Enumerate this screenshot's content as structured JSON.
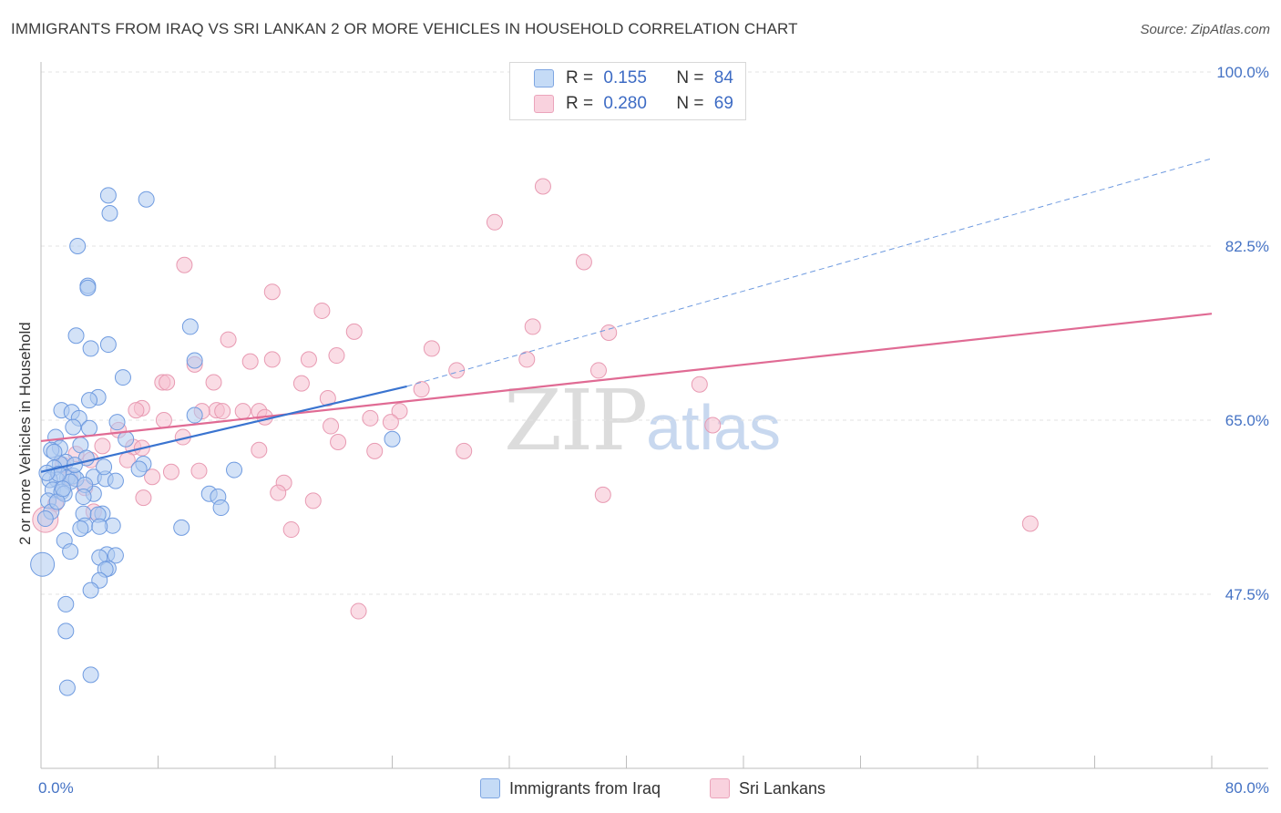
{
  "header": {
    "title": "IMMIGRANTS FROM IRAQ VS SRI LANKAN 2 OR MORE VEHICLES IN HOUSEHOLD CORRELATION CHART",
    "source": "Source: ZipAtlas.com"
  },
  "legend": {
    "series1": {
      "r_label": "R =",
      "r_value": "0.155",
      "n_label": "N =",
      "n_value": "84"
    },
    "series2": {
      "r_label": "R =",
      "r_value": "0.280",
      "n_label": "N =",
      "n_value": "69"
    }
  },
  "watermark": {
    "zip": "ZIP",
    "atlas": "atlas"
  },
  "colors": {
    "blue_fill": "#aecbf0",
    "blue_stroke": "#6f9be0",
    "blue_line": "#3a74d0",
    "pink_fill": "#f6c0d0",
    "pink_stroke": "#e89ab2",
    "pink_line": "#e06b94",
    "axis_text": "#4472c4"
  },
  "chart_data": {
    "type": "scatter",
    "title": "IMMIGRANTS FROM IRAQ VS SRI LANKAN 2 OR MORE VEHICLES IN HOUSEHOLD CORRELATION CHART",
    "xlabel": "",
    "ylabel": "2 or more Vehicles in Household",
    "x_range": [
      0,
      80
    ],
    "y_range": [
      30,
      100
    ],
    "x_tick_labels": [
      "0.0%",
      "80.0%"
    ],
    "y_ticks": [
      47.5,
      65.0,
      82.5,
      100.0
    ],
    "y_tick_labels": [
      "47.5%",
      "65.0%",
      "82.5%",
      "100.0%"
    ],
    "grid": true,
    "series": [
      {
        "name": "Immigrants from Iraq",
        "r": 0.155,
        "n": 84,
        "trend": {
          "x": [
            0.0,
            25.0
          ],
          "y": [
            59.8,
            68.4
          ]
        },
        "trend_ext": {
          "x": [
            25.0,
            80.0
          ],
          "y": [
            68.4,
            91.3
          ]
        },
        "points": [
          [
            4.6,
            87.6
          ],
          [
            7.2,
            87.2
          ],
          [
            4.7,
            85.8
          ],
          [
            2.5,
            82.5
          ],
          [
            3.2,
            78.5
          ],
          [
            3.2,
            78.3
          ],
          [
            10.2,
            74.4
          ],
          [
            2.4,
            73.5
          ],
          [
            4.6,
            72.6
          ],
          [
            3.4,
            72.2
          ],
          [
            10.5,
            71.0
          ],
          [
            5.6,
            69.3
          ],
          [
            3.9,
            67.3
          ],
          [
            3.3,
            67.0
          ],
          [
            1.4,
            66.0
          ],
          [
            2.1,
            65.8
          ],
          [
            2.6,
            65.2
          ],
          [
            10.5,
            65.5
          ],
          [
            5.2,
            64.8
          ],
          [
            2.2,
            64.3
          ],
          [
            3.3,
            64.2
          ],
          [
            1.0,
            63.3
          ],
          [
            5.8,
            63.1
          ],
          [
            2.7,
            62.5
          ],
          [
            1.3,
            62.2
          ],
          [
            0.7,
            62.0
          ],
          [
            3.1,
            61.2
          ],
          [
            1.7,
            60.8
          ],
          [
            1.3,
            60.6
          ],
          [
            7.0,
            60.6
          ],
          [
            0.9,
            60.2
          ],
          [
            6.7,
            60.1
          ],
          [
            13.2,
            60.0
          ],
          [
            2.2,
            59.4
          ],
          [
            3.6,
            59.3
          ],
          [
            1.8,
            59.2
          ],
          [
            4.4,
            59.1
          ],
          [
            1.1,
            59.0
          ],
          [
            0.6,
            59.0
          ],
          [
            2.4,
            59.1
          ],
          [
            5.1,
            58.9
          ],
          [
            2.0,
            58.8
          ],
          [
            0.8,
            58.0
          ],
          [
            1.4,
            57.8
          ],
          [
            1.6,
            57.6
          ],
          [
            3.6,
            57.6
          ],
          [
            11.5,
            57.6
          ],
          [
            12.1,
            57.3
          ],
          [
            0.5,
            56.9
          ],
          [
            12.3,
            56.2
          ],
          [
            0.7,
            55.8
          ],
          [
            2.9,
            55.6
          ],
          [
            4.2,
            55.6
          ],
          [
            3.9,
            55.5
          ],
          [
            0.3,
            55.1
          ],
          [
            3.0,
            54.4
          ],
          [
            4.9,
            54.4
          ],
          [
            4.0,
            54.3
          ],
          [
            9.6,
            54.2
          ],
          [
            2.7,
            54.1
          ],
          [
            1.6,
            52.9
          ],
          [
            2.0,
            51.8
          ],
          [
            4.5,
            51.5
          ],
          [
            5.1,
            51.4
          ],
          [
            4.0,
            51.2
          ],
          [
            4.6,
            50.1
          ],
          [
            4.4,
            50.0
          ],
          [
            0.1,
            50.5
          ],
          [
            4.0,
            48.9
          ],
          [
            3.4,
            47.9
          ],
          [
            1.7,
            46.5
          ],
          [
            1.7,
            43.8
          ],
          [
            3.4,
            39.4
          ],
          [
            1.8,
            38.1
          ],
          [
            24.0,
            63.1
          ],
          [
            1.2,
            59.6
          ],
          [
            2.3,
            60.5
          ],
          [
            3.0,
            58.5
          ],
          [
            0.4,
            59.7
          ],
          [
            2.9,
            57.3
          ],
          [
            1.1,
            56.8
          ],
          [
            4.3,
            60.3
          ],
          [
            0.9,
            61.8
          ],
          [
            1.5,
            58.1
          ]
        ]
      },
      {
        "name": "Sri Lankans",
        "r": 0.28,
        "n": 69,
        "trend": {
          "x": [
            0.0,
            80.0
          ],
          "y": [
            62.9,
            75.7
          ]
        },
        "points": [
          [
            34.3,
            88.5
          ],
          [
            31.0,
            84.9
          ],
          [
            37.1,
            80.9
          ],
          [
            9.8,
            80.6
          ],
          [
            15.8,
            77.9
          ],
          [
            19.2,
            76.0
          ],
          [
            33.6,
            74.4
          ],
          [
            21.4,
            73.9
          ],
          [
            38.8,
            73.8
          ],
          [
            12.8,
            73.1
          ],
          [
            26.7,
            72.2
          ],
          [
            20.2,
            71.5
          ],
          [
            33.2,
            71.1
          ],
          [
            15.8,
            71.1
          ],
          [
            14.3,
            70.9
          ],
          [
            18.3,
            71.1
          ],
          [
            10.5,
            70.6
          ],
          [
            38.1,
            70.0
          ],
          [
            28.4,
            70.0
          ],
          [
            8.3,
            68.8
          ],
          [
            8.6,
            68.8
          ],
          [
            11.8,
            68.8
          ],
          [
            17.8,
            68.7
          ],
          [
            45.0,
            68.6
          ],
          [
            26.0,
            68.1
          ],
          [
            19.6,
            67.2
          ],
          [
            6.9,
            66.2
          ],
          [
            6.5,
            66.0
          ],
          [
            12.0,
            66.0
          ],
          [
            11.0,
            65.9
          ],
          [
            12.4,
            65.9
          ],
          [
            13.8,
            65.9
          ],
          [
            14.9,
            65.9
          ],
          [
            24.5,
            65.9
          ],
          [
            15.3,
            65.3
          ],
          [
            8.4,
            65.0
          ],
          [
            22.5,
            65.2
          ],
          [
            23.9,
            64.8
          ],
          [
            45.9,
            64.5
          ],
          [
            19.8,
            64.4
          ],
          [
            5.3,
            64.0
          ],
          [
            9.7,
            63.3
          ],
          [
            20.3,
            62.8
          ],
          [
            4.2,
            62.4
          ],
          [
            6.3,
            62.3
          ],
          [
            6.9,
            62.2
          ],
          [
            14.9,
            62.0
          ],
          [
            22.8,
            61.9
          ],
          [
            28.9,
            61.9
          ],
          [
            2.4,
            61.6
          ],
          [
            3.4,
            61.0
          ],
          [
            5.9,
            61.0
          ],
          [
            8.9,
            59.8
          ],
          [
            10.8,
            59.9
          ],
          [
            7.6,
            59.3
          ],
          [
            16.6,
            58.7
          ],
          [
            3.0,
            58.2
          ],
          [
            16.2,
            57.7
          ],
          [
            38.4,
            57.5
          ],
          [
            7.0,
            57.2
          ],
          [
            18.6,
            56.9
          ],
          [
            1.0,
            56.6
          ],
          [
            3.6,
            55.8
          ],
          [
            67.6,
            54.6
          ],
          [
            17.1,
            54.0
          ],
          [
            21.7,
            45.8
          ],
          [
            0.3,
            55.0
          ],
          [
            2.0,
            59.2
          ],
          [
            1.5,
            60.5
          ]
        ]
      }
    ]
  },
  "bottom_legend": {
    "item1": "Immigrants from Iraq",
    "item2": "Sri Lankans"
  }
}
